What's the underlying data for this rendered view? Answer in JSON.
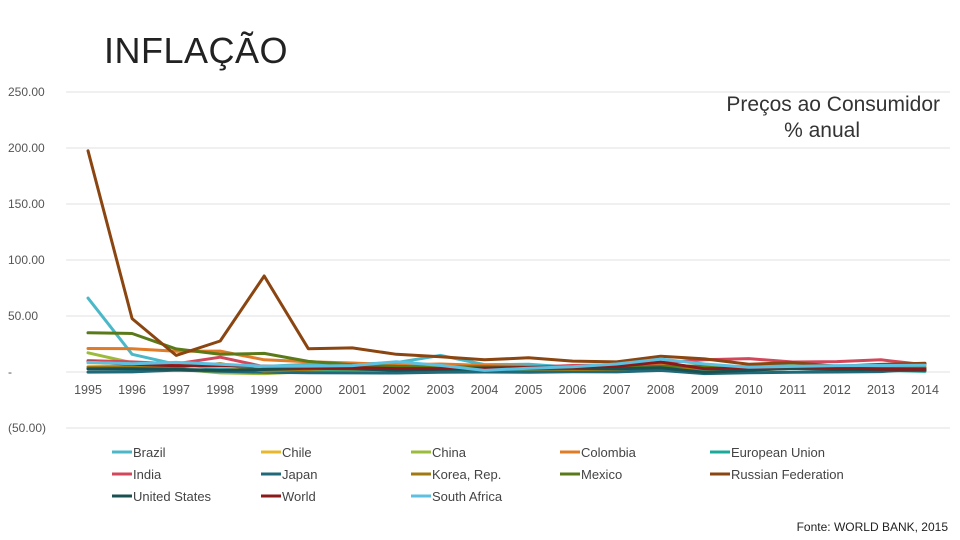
{
  "title": "INFLAÇÃO",
  "subtitle_line1": "Preços ao Consumidor",
  "subtitle_line2": "% anual",
  "source": "Fonte: WORLD BANK, 2015",
  "chart_data": {
    "type": "line",
    "title": "INFLAÇÃO",
    "subtitle": "Preços ao Consumidor % anual",
    "ylim": [
      -50,
      250
    ],
    "y_ticks": [
      250,
      200,
      150,
      100,
      50,
      0,
      -50
    ],
    "y_tick_labels": [
      "250.00",
      "200.00",
      "150.00",
      "100.00",
      "50.00",
      "-",
      "(50.00)"
    ],
    "x": [
      "1995",
      "1996",
      "1997",
      "1998",
      "1999",
      "2000",
      "2001",
      "2002",
      "2003",
      "2004",
      "2005",
      "2006",
      "2007",
      "2008",
      "2009",
      "2010",
      "2011",
      "2012",
      "2013",
      "2014"
    ],
    "legend_position": "bottom",
    "series": [
      {
        "name": "Brazil",
        "color": "#4bb8c8",
        "values": [
          66.0,
          15.8,
          6.9,
          3.2,
          4.9,
          7.0,
          6.8,
          8.4,
          14.8,
          6.6,
          6.9,
          4.2,
          3.6,
          5.7,
          4.9,
          5.0,
          6.6,
          5.4,
          6.2,
          6.3
        ]
      },
      {
        "name": "Chile",
        "color": "#e8b82c",
        "values": [
          8.2,
          7.4,
          6.1,
          5.1,
          3.3,
          3.8,
          3.6,
          2.5,
          2.8,
          1.1,
          3.1,
          3.4,
          4.4,
          8.7,
          0.4,
          1.4,
          3.3,
          3.0,
          1.8,
          4.4
        ]
      },
      {
        "name": "China",
        "color": "#9bbb3c",
        "values": [
          17.1,
          8.3,
          2.8,
          -0.8,
          -1.4,
          0.3,
          0.7,
          -0.8,
          1.2,
          3.9,
          1.8,
          1.5,
          4.8,
          5.9,
          -0.7,
          3.3,
          5.4,
          2.6,
          2.6,
          2.0
        ]
      },
      {
        "name": "Colombia",
        "color": "#e07b28",
        "values": [
          21.0,
          20.8,
          18.5,
          18.7,
          10.9,
          9.2,
          8.0,
          6.3,
          7.1,
          5.9,
          5.0,
          4.3,
          5.5,
          7.0,
          4.2,
          2.3,
          3.4,
          3.2,
          2.0,
          2.9
        ]
      },
      {
        "name": "European Union",
        "color": "#1aaa9a",
        "values": [
          3.5,
          2.6,
          1.9,
          1.3,
          1.2,
          2.4,
          2.6,
          2.2,
          2.1,
          2.3,
          2.2,
          2.3,
          2.4,
          3.7,
          1.0,
          2.1,
          3.1,
          2.6,
          1.5,
          0.5
        ]
      },
      {
        "name": "India",
        "color": "#d2475a",
        "values": [
          10.2,
          9.0,
          7.2,
          13.2,
          4.7,
          4.0,
          3.8,
          4.3,
          3.8,
          3.8,
          4.2,
          5.8,
          6.4,
          8.4,
          10.9,
          12.0,
          8.9,
          9.3,
          10.9,
          6.4
        ]
      },
      {
        "name": "Japan",
        "color": "#1f6a7a",
        "values": [
          -0.1,
          0.1,
          1.7,
          0.7,
          -0.3,
          -0.7,
          -0.8,
          -0.9,
          -0.2,
          0.0,
          -0.3,
          0.2,
          0.1,
          1.4,
          -1.4,
          -0.7,
          -0.3,
          0.0,
          0.4,
          2.8
        ]
      },
      {
        "name": "Korea, Rep.",
        "color": "#a07a10",
        "values": [
          4.5,
          4.9,
          4.4,
          7.5,
          0.8,
          2.3,
          4.1,
          2.8,
          3.5,
          3.6,
          2.8,
          2.2,
          2.5,
          4.7,
          2.8,
          2.9,
          4.0,
          2.2,
          1.3,
          1.3
        ]
      },
      {
        "name": "Mexico",
        "color": "#5a7a1a",
        "values": [
          35.0,
          34.4,
          20.6,
          15.9,
          16.6,
          9.5,
          6.4,
          5.0,
          4.5,
          4.7,
          4.0,
          3.6,
          4.0,
          5.1,
          5.3,
          4.2,
          3.4,
          4.1,
          3.8,
          4.0
        ]
      },
      {
        "name": "Russian Federation",
        "color": "#8a4510",
        "values": [
          197.5,
          47.7,
          14.8,
          27.7,
          85.7,
          20.8,
          21.5,
          15.8,
          13.7,
          10.9,
          12.7,
          9.7,
          9.0,
          14.1,
          11.7,
          6.9,
          8.4,
          5.1,
          6.8,
          7.8
        ]
      },
      {
        "name": "United States",
        "color": "#1a5050",
        "values": [
          2.8,
          2.9,
          2.3,
          1.6,
          2.2,
          3.4,
          2.8,
          1.6,
          2.3,
          2.7,
          3.4,
          3.2,
          2.9,
          3.8,
          -0.4,
          1.6,
          3.2,
          2.1,
          1.5,
          1.6
        ]
      },
      {
        "name": "World",
        "color": "#8a1a1a",
        "values": [
          9.0,
          7.0,
          5.5,
          5.8,
          5.3,
          4.0,
          4.0,
          3.0,
          3.0,
          3.5,
          4.0,
          4.2,
          5.0,
          8.9,
          2.9,
          3.6,
          4.9,
          3.7,
          2.6,
          2.5
        ]
      },
      {
        "name": "South Africa",
        "color": "#5ec0e0",
        "values": [
          8.7,
          7.4,
          8.6,
          6.9,
          5.2,
          5.3,
          5.7,
          9.2,
          5.9,
          1.4,
          3.4,
          4.6,
          7.1,
          11.5,
          7.1,
          4.3,
          5.0,
          5.7,
          5.8,
          6.1
        ]
      }
    ]
  }
}
